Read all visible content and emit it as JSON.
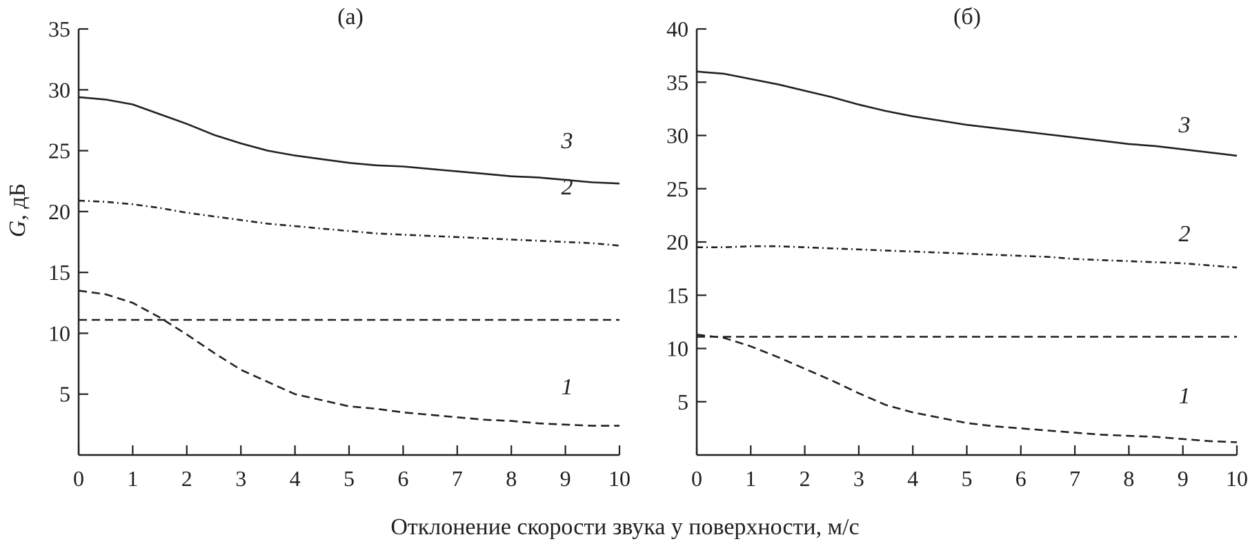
{
  "figure": {
    "xlabel": "Отклонение скорости звука у поверхности, м/с",
    "ylabel_italic": "G",
    "ylabel_rest": ", дБ"
  },
  "chart_data": [
    {
      "type": "line",
      "title": "(а)",
      "xlim": [
        0,
        10
      ],
      "ylim": [
        0,
        35
      ],
      "xticks": [
        0,
        1,
        2,
        3,
        4,
        5,
        6,
        7,
        8,
        9,
        10
      ],
      "yticks": [
        5,
        10,
        15,
        20,
        25,
        30,
        35
      ],
      "x": [
        0,
        0.5,
        1,
        1.5,
        2,
        2.5,
        3,
        3.5,
        4,
        4.5,
        5,
        5.5,
        6,
        6.5,
        7,
        7.5,
        8,
        8.5,
        9,
        9.5,
        10
      ],
      "series": [
        {
          "name": "1",
          "style": "dashed",
          "values": [
            13.5,
            13.2,
            12.5,
            11.3,
            9.9,
            8.4,
            7.0,
            6.0,
            5.0,
            4.5,
            4.0,
            3.8,
            3.5,
            3.3,
            3.1,
            2.9,
            2.8,
            2.6,
            2.5,
            2.4,
            2.4
          ]
        },
        {
          "name": "2",
          "style": "dash-dot",
          "values": [
            20.9,
            20.8,
            20.6,
            20.3,
            19.9,
            19.6,
            19.3,
            19.0,
            18.8,
            18.6,
            18.4,
            18.2,
            18.1,
            18.0,
            17.9,
            17.8,
            17.7,
            17.6,
            17.5,
            17.4,
            17.2
          ]
        },
        {
          "name": "3",
          "style": "solid",
          "values": [
            29.4,
            29.2,
            28.8,
            28.0,
            27.2,
            26.3,
            25.6,
            25.0,
            24.6,
            24.3,
            24.0,
            23.8,
            23.7,
            23.5,
            23.3,
            23.1,
            22.9,
            22.8,
            22.6,
            22.4,
            22.3
          ]
        },
        {
          "name": "",
          "style": "dashed",
          "values": [
            11.1,
            11.1,
            11.1,
            11.1,
            11.1,
            11.1,
            11.1,
            11.1,
            11.1,
            11.1,
            11.1,
            11.1,
            11.1,
            11.1,
            11.1,
            11.1,
            11.1,
            11.1,
            11.1,
            11.1,
            11.1
          ]
        }
      ]
    },
    {
      "type": "line",
      "title": "(б)",
      "xlim": [
        0,
        10
      ],
      "ylim": [
        0,
        40
      ],
      "xticks": [
        0,
        1,
        2,
        3,
        4,
        5,
        6,
        7,
        8,
        9,
        10
      ],
      "yticks": [
        5,
        10,
        15,
        20,
        25,
        30,
        35,
        40
      ],
      "x": [
        0,
        0.5,
        1,
        1.5,
        2,
        2.5,
        3,
        3.5,
        4,
        4.5,
        5,
        5.5,
        6,
        6.5,
        7,
        7.5,
        8,
        8.5,
        9,
        9.5,
        10
      ],
      "series": [
        {
          "name": "1",
          "style": "dashed",
          "values": [
            11.3,
            11.0,
            10.2,
            9.2,
            8.1,
            7.0,
            5.8,
            4.7,
            4.0,
            3.5,
            3.0,
            2.7,
            2.5,
            2.3,
            2.1,
            1.9,
            1.8,
            1.7,
            1.5,
            1.3,
            1.2
          ]
        },
        {
          "name": "2",
          "style": "dash-dot",
          "values": [
            19.5,
            19.5,
            19.6,
            19.6,
            19.5,
            19.4,
            19.3,
            19.2,
            19.1,
            19.0,
            18.9,
            18.8,
            18.7,
            18.6,
            18.4,
            18.3,
            18.2,
            18.1,
            18.0,
            17.8,
            17.6
          ]
        },
        {
          "name": "3",
          "style": "solid",
          "values": [
            36.0,
            35.8,
            35.3,
            34.8,
            34.2,
            33.6,
            32.9,
            32.3,
            31.8,
            31.4,
            31.0,
            30.7,
            30.4,
            30.1,
            29.8,
            29.5,
            29.2,
            29.0,
            28.7,
            28.4,
            28.1
          ]
        },
        {
          "name": "",
          "style": "dashed",
          "values": [
            11.1,
            11.1,
            11.1,
            11.1,
            11.1,
            11.1,
            11.1,
            11.1,
            11.1,
            11.1,
            11.1,
            11.1,
            11.1,
            11.1,
            11.1,
            11.1,
            11.1,
            11.1,
            11.1,
            11.1,
            11.1
          ]
        }
      ]
    }
  ]
}
